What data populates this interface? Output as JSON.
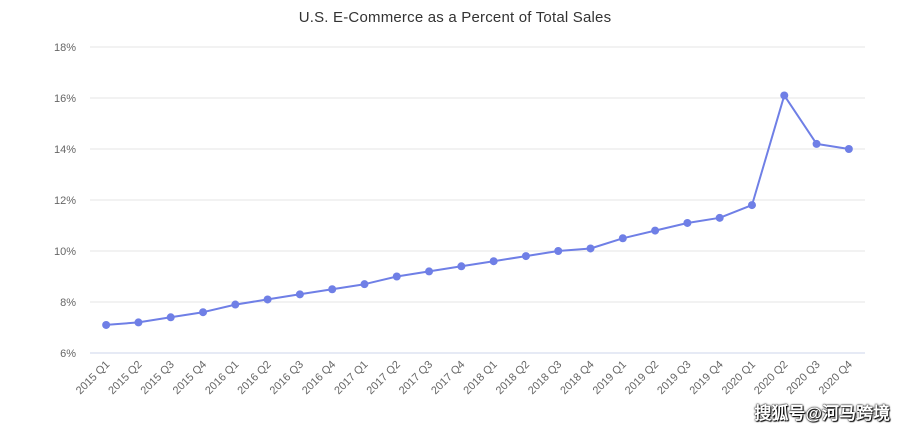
{
  "chart_data": {
    "type": "line",
    "title": "U.S. E-Commerce as a Percent of Total Sales",
    "xlabel": "",
    "ylabel": "",
    "ylim": [
      6,
      18
    ],
    "yticks": [
      "6%",
      "8%",
      "10%",
      "12%",
      "14%",
      "16%",
      "18%"
    ],
    "grid": true,
    "color": "#6f7fe6",
    "categories": [
      "2015 Q1",
      "2015 Q2",
      "2015 Q3",
      "2015 Q4",
      "2016 Q1",
      "2016 Q2",
      "2016 Q3",
      "2016 Q4",
      "2017 Q1",
      "2017 Q2",
      "2017 Q3",
      "2017 Q4",
      "2018 Q1",
      "2018 Q2",
      "2018 Q3",
      "2018 Q4",
      "2019 Q1",
      "2019 Q2",
      "2019 Q3",
      "2019 Q4",
      "2020 Q1",
      "2020 Q2",
      "2020 Q3",
      "2020 Q4"
    ],
    "series": [
      {
        "values": [
          7.1,
          7.2,
          7.4,
          7.6,
          7.9,
          8.1,
          8.3,
          8.5,
          8.7,
          9.0,
          9.2,
          9.4,
          9.6,
          9.8,
          10.0,
          10.1,
          10.5,
          10.8,
          11.1,
          11.3,
          11.8,
          16.1,
          14.2,
          14.0
        ]
      }
    ]
  },
  "watermark": "搜狐号@河马跨境"
}
